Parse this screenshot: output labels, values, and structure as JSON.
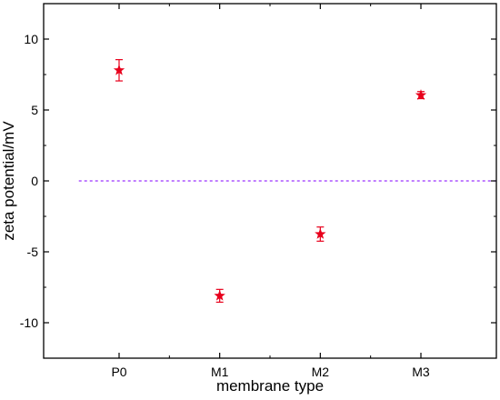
{
  "chart_data": {
    "type": "scatter",
    "xlabel": "membrane type",
    "ylabel": "zeta potential/mV",
    "categories": [
      "P0",
      "M1",
      "M2",
      "M3"
    ],
    "ylim": [
      -12.5,
      12.5
    ],
    "yticks": [
      -10,
      -5,
      0,
      5,
      10
    ],
    "grid": false,
    "reference_line": {
      "y": 0,
      "style": "dashed",
      "color": "#9b30ff"
    },
    "series": [
      {
        "marker": "star",
        "color": "#e8001c",
        "values": [
          7.8,
          -8.1,
          -3.75,
          6.05
        ],
        "errors": [
          0.75,
          0.45,
          0.5,
          0.25
        ]
      }
    ]
  }
}
